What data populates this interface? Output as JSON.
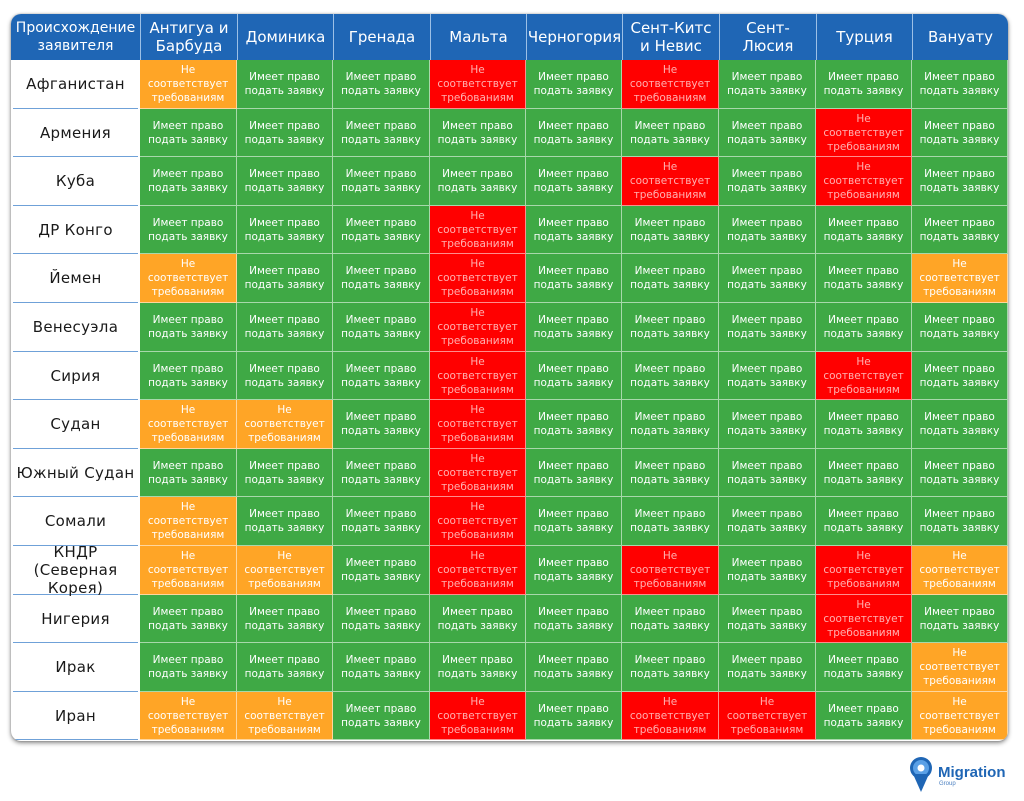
{
  "colors": {
    "eligible": "#3fa945",
    "not_eligible": "#ff0000",
    "partial": "#ffa526",
    "header": "#1f66b5"
  },
  "status_labels": {
    "eligible": "Имеет право\nподать заявку",
    "not_eligible": "Не соответствует\nтребованиям",
    "partial": "Не соответствует\nтребованиям"
  },
  "chart_data": {
    "type": "table",
    "corner_label": "Происхождение\nзаявителя",
    "columns": [
      "Антигуа и\nБарбуда",
      "Доминика",
      "Гренада",
      "Мальта",
      "Черногория",
      "Сент-Китс\nи Невис",
      "Сент-Люсия",
      "Турция",
      "Вануату"
    ],
    "rows": [
      {
        "label": "Афганистан",
        "values": [
          "partial",
          "eligible",
          "eligible",
          "not_eligible",
          "eligible",
          "not_eligible",
          "eligible",
          "eligible",
          "eligible"
        ]
      },
      {
        "label": "Армения",
        "values": [
          "eligible",
          "eligible",
          "eligible",
          "eligible",
          "eligible",
          "eligible",
          "eligible",
          "not_eligible",
          "eligible"
        ]
      },
      {
        "label": "Куба",
        "values": [
          "eligible",
          "eligible",
          "eligible",
          "eligible",
          "eligible",
          "not_eligible",
          "eligible",
          "not_eligible",
          "eligible"
        ]
      },
      {
        "label": "ДР Конго",
        "values": [
          "eligible",
          "eligible",
          "eligible",
          "not_eligible",
          "eligible",
          "eligible",
          "eligible",
          "eligible",
          "eligible"
        ]
      },
      {
        "label": "Йемен",
        "values": [
          "partial",
          "eligible",
          "eligible",
          "not_eligible",
          "eligible",
          "eligible",
          "eligible",
          "eligible",
          "partial"
        ]
      },
      {
        "label": "Венесуэла",
        "values": [
          "eligible",
          "eligible",
          "eligible",
          "not_eligible",
          "eligible",
          "eligible",
          "eligible",
          "eligible",
          "eligible"
        ]
      },
      {
        "label": "Сирия",
        "values": [
          "eligible",
          "eligible",
          "eligible",
          "not_eligible",
          "eligible",
          "eligible",
          "eligible",
          "not_eligible",
          "eligible"
        ]
      },
      {
        "label": "Судан",
        "values": [
          "partial",
          "partial",
          "eligible",
          "not_eligible",
          "eligible",
          "eligible",
          "eligible",
          "eligible",
          "eligible"
        ]
      },
      {
        "label": "Южный Судан",
        "values": [
          "eligible",
          "eligible",
          "eligible",
          "not_eligible",
          "eligible",
          "eligible",
          "eligible",
          "eligible",
          "eligible"
        ]
      },
      {
        "label": "Сомали",
        "values": [
          "partial",
          "eligible",
          "eligible",
          "not_eligible",
          "eligible",
          "eligible",
          "eligible",
          "eligible",
          "eligible"
        ]
      },
      {
        "label": "КНДР\n(Северная Корея)",
        "values": [
          "partial",
          "partial",
          "eligible",
          "not_eligible",
          "eligible",
          "not_eligible",
          "eligible",
          "not_eligible",
          "partial"
        ]
      },
      {
        "label": "Нигерия",
        "values": [
          "eligible",
          "eligible",
          "eligible",
          "eligible",
          "eligible",
          "eligible",
          "eligible",
          "not_eligible",
          "eligible"
        ]
      },
      {
        "label": "Ирак",
        "values": [
          "eligible",
          "eligible",
          "eligible",
          "eligible",
          "eligible",
          "eligible",
          "eligible",
          "eligible",
          "partial"
        ]
      },
      {
        "label": "Иран",
        "values": [
          "partial",
          "partial",
          "eligible",
          "not_eligible",
          "eligible",
          "not_eligible",
          "not_eligible",
          "eligible",
          "partial"
        ]
      }
    ]
  },
  "logo": {
    "text": "Migration",
    "subtext": "Group"
  }
}
